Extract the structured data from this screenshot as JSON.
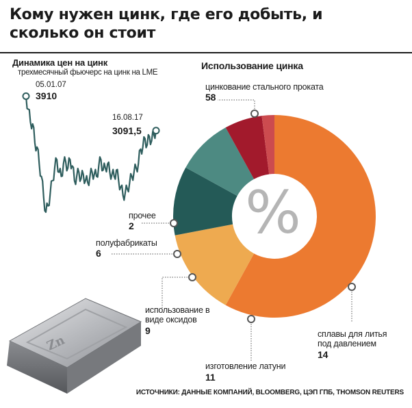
{
  "title": "Кому нужен цинк, где его добыть, и сколько он стоит",
  "line_chart": {
    "title": "Динамика цен на цинк",
    "subtitle": "трехмесячный фьючерс на цинк на LME",
    "start": {
      "date": "05.01.07",
      "value": "3910"
    },
    "end": {
      "date": "16.08.17",
      "value": "3091,5"
    }
  },
  "pie_chart": {
    "title": "Использование цинка",
    "center_symbol": "%"
  },
  "source": "ИСТОЧНИКИ: ДАННЫЕ КОМПАНИЙ, BLOOMBERG, ЦЭП ГПБ, THOMSON REUTERS",
  "colors": {
    "line": "#2e5d5d",
    "text": "#1a1a1a",
    "center": "#b5b5b5"
  },
  "chart_data": [
    {
      "type": "line",
      "title": "Динамика цен на цинк",
      "subtitle": "трехмесячный фьючерс на цинк на LME",
      "x_start": "05.01.07",
      "x_end": "16.08.17",
      "points": [
        3910,
        3600,
        3300,
        3250,
        2800,
        2700,
        2300,
        2000,
        1500,
        1150,
        1300,
        1600,
        1900,
        2200,
        2400,
        2100,
        2000,
        2300,
        2350,
        2200,
        2400,
        2250,
        1900,
        2000,
        2100,
        1950,
        2050,
        1900,
        1850,
        2000,
        2100,
        2050,
        2000,
        2250,
        2400,
        2150,
        2200,
        2300,
        2100,
        2050,
        2000,
        2150,
        1900,
        1750,
        1550,
        1600,
        1700,
        1850,
        2000,
        2100,
        2200,
        2300,
        2650,
        2700,
        2900,
        2750,
        2950,
        2850,
        3000,
        3091.5
      ],
      "annotations": [
        {
          "date": "05.01.07",
          "value": 3910
        },
        {
          "date": "16.08.17",
          "value": 3091.5
        }
      ]
    },
    {
      "type": "pie",
      "title": "Использование цинка",
      "unit": "%",
      "slices": [
        {
          "label": "цинкование стального проката",
          "value": 58,
          "color": "#ec7a30"
        },
        {
          "label": "сплавы для литья под давлением",
          "value": 14,
          "color": "#eeaa50"
        },
        {
          "label": "изготовление латуни",
          "value": 11,
          "color": "#245a57"
        },
        {
          "label": "использование в виде оксидов",
          "value": 9,
          "color": "#4d8a82"
        },
        {
          "label": "полуфабрикаты",
          "value": 6,
          "color": "#a21a2c"
        },
        {
          "label": "прочее",
          "value": 2,
          "color": "#cc4b4f"
        }
      ]
    }
  ]
}
